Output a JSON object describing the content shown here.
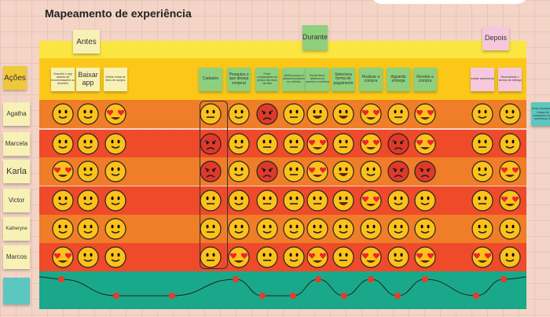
{
  "title": "Mapeamento de experiência",
  "phases": [
    "Antes",
    "Durante",
    "Depois"
  ],
  "row_label": "Ações",
  "steps": [
    {
      "label": "Descobri o app através de recomendações ou anúncios",
      "color": "#f7f1b5"
    },
    {
      "label": "Baixar app",
      "color": "#f7f1b5"
    },
    {
      "label": "Definir a lista de itens de compra",
      "color": "#f7f1b5"
    },
    {
      "label": "Cadastro",
      "color": "#8fd07e"
    },
    {
      "label": "Pesquisa o que deseja comprar",
      "color": "#8fd07e"
    },
    {
      "label": "Fazer comparações de preços dos itens da lista",
      "color": "#8fd07e"
    },
    {
      "label": "Verifica preços e adiciona produtos no carrinho",
      "color": "#8fd07e"
    },
    {
      "label": "Decide itens, adiciona ao carrinho e confirma",
      "color": "#8fd07e"
    },
    {
      "label": "Seleciona forma de pagamento",
      "color": "#8fd07e"
    },
    {
      "label": "Realizar a compra",
      "color": "#8fd07e"
    },
    {
      "label": "Aguarda entrega",
      "color": "#8fd07e"
    },
    {
      "label": "Recebe a compra",
      "color": "#8fd07e"
    },
    {
      "label": "avaliar experiencia",
      "color": "#f6c8dc"
    },
    {
      "label": "Recomendar o serviço de entrega",
      "color": "#f6c8dc"
    }
  ],
  "side_note": "Uma montanha-russa de emoções com extremos de",
  "people": [
    {
      "name": "Agatha",
      "moods": [
        "smile",
        "smile",
        "love",
        "neutral",
        "smile",
        "angry",
        "neutral",
        "grin",
        "grin",
        "love",
        "neutral",
        "love",
        "smile",
        "smile"
      ]
    },
    {
      "name": "Marcela",
      "moods": [
        "smile",
        "smile",
        "smile",
        "angry",
        "smile",
        "neutral",
        "neutral",
        "love",
        "neutral",
        "love",
        "angry",
        "love",
        "neutral",
        "smile"
      ]
    },
    {
      "name": "Karla",
      "moods": [
        "love",
        "smile",
        "smile",
        "angry",
        "smile",
        "angry",
        "neutral",
        "love",
        "grin",
        "smile",
        "angry",
        "angry",
        "smile",
        "love"
      ]
    },
    {
      "name": "Victor",
      "moods": [
        "smile",
        "smile",
        "smile",
        "neutral",
        "smile",
        "neutral",
        "neutral",
        "neutral",
        "grin",
        "love",
        "smile",
        "smile",
        "neutral",
        "love"
      ]
    },
    {
      "name": "Katheryne",
      "moods": [
        "smile",
        "smile",
        "smile",
        "neutral",
        "smile",
        "smile",
        "smile",
        "smile",
        "smile",
        "smile",
        "smile",
        "smile",
        "smile",
        "smile"
      ]
    },
    {
      "name": "Marcos",
      "moods": [
        "love",
        "smile",
        "smile",
        "neutral",
        "love",
        "neutral",
        "smile",
        "love",
        "neutral",
        "love",
        "smile",
        "love",
        "love",
        "smile"
      ]
    }
  ],
  "emotion_curve": [
    "high",
    "low",
    "low",
    "high",
    "low",
    "low",
    "high",
    "low",
    "high",
    "low",
    "high",
    "low",
    "high"
  ],
  "colors": {
    "orange": "#f07d28",
    "red": "#ef4a2a",
    "yellow": "#fbe540",
    "gold": "#fbc81a",
    "teal": "#1aa88a"
  }
}
